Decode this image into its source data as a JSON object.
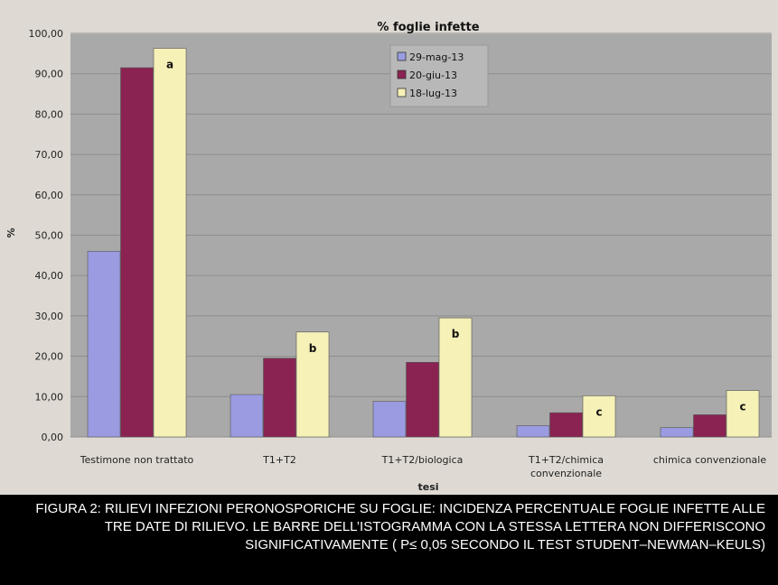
{
  "chart_data": {
    "type": "bar",
    "title": "% foglie infette",
    "xlabel": "tesi",
    "ylabel": "%",
    "ylim": [
      0,
      100
    ],
    "yticks": [
      "0,00",
      "10,00",
      "20,00",
      "30,00",
      "40,00",
      "50,00",
      "60,00",
      "70,00",
      "80,00",
      "90,00",
      "100,00"
    ],
    "categories": [
      [
        "Testimone non trattato"
      ],
      [
        "T1+T2"
      ],
      [
        "T1+T2/biologica"
      ],
      [
        "T1+T2/chimica",
        "convenzionale"
      ],
      [
        "chimica convenzionale"
      ]
    ],
    "series": [
      {
        "name": "29-mag-13",
        "color": "#9a9be0",
        "values": [
          46,
          10.5,
          8.8,
          2.8,
          2.3
        ]
      },
      {
        "name": "20-giu-13",
        "color": "#8a2352",
        "values": [
          91.5,
          19.5,
          18.5,
          6,
          5.5
        ]
      },
      {
        "name": "18-lug-13",
        "color": "#f6f1b6",
        "values": [
          96.3,
          26,
          29.5,
          10.2,
          11.5
        ]
      }
    ],
    "significance_letters": [
      "a",
      "b",
      "b",
      "c",
      "c"
    ],
    "legend_position": "top-center",
    "grid": true
  },
  "colors": {
    "plot_area": "#a9a9a9",
    "gridline": "#8e8e8e",
    "background": "#dedad3"
  },
  "caption": "FIGURA 2: RILIEVI INFEZIONI PERONOSPORICHE SU FOGLIE: INCIDENZA PERCENTUALE FOGLIE INFETTE ALLE TRE DATE DI RILIEVO. LE BARRE DELL’ISTOGRAMMA CON LA STESSA LETTERA NON DIFFERISCONO SIGNIFICATIVAMENTE ( P≤ 0,05 SECONDO IL TEST STUDENT–NEWMAN–KEULS)"
}
